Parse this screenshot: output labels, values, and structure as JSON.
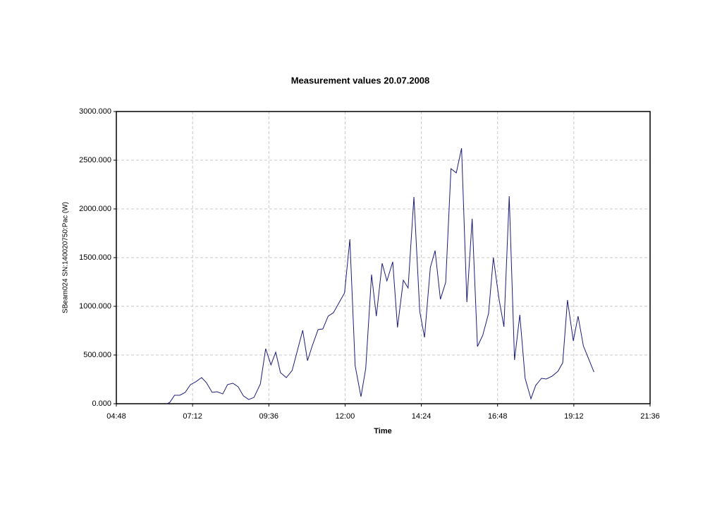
{
  "chart_data": {
    "type": "line",
    "title": "Measurement values 20.07.2008",
    "x_label": "Time",
    "y_label": "SBeam024 SN:140020750:Pac (W)",
    "grid": true,
    "xlim": [
      288,
      1296
    ],
    "xticks": [
      {
        "value": 288,
        "label": "04:48"
      },
      {
        "value": 432,
        "label": "07:12"
      },
      {
        "value": 576,
        "label": "09:36"
      },
      {
        "value": 720,
        "label": "12:00"
      },
      {
        "value": 864,
        "label": "14:24"
      },
      {
        "value": 1008,
        "label": "16:48"
      },
      {
        "value": 1152,
        "label": "19:12"
      },
      {
        "value": 1296,
        "label": "21:36"
      }
    ],
    "ylim": [
      0,
      3000
    ],
    "yticks": [
      {
        "value": 0,
        "label": "0.000"
      },
      {
        "value": 500,
        "label": "500.000"
      },
      {
        "value": 1000,
        "label": "1000.000"
      },
      {
        "value": 1500,
        "label": "1500.000"
      },
      {
        "value": 2000,
        "label": "2000.000"
      },
      {
        "value": 2500,
        "label": "2500.000"
      },
      {
        "value": 3000,
        "label": "3000.000"
      }
    ],
    "series": [
      {
        "color": "#1c1c78",
        "x": [
          384,
          389,
          398,
          408,
          418,
          428,
          438,
          449,
          458,
          469,
          478,
          489,
          498,
          508,
          518,
          528,
          538,
          548,
          560,
          570,
          580,
          589,
          598,
          609,
          620,
          640,
          649,
          658,
          669,
          678,
          688,
          698,
          719,
          729,
          739,
          750,
          759,
          770,
          779,
          790,
          799,
          810,
          819,
          830,
          839,
          850,
          861,
          870,
          881,
          890,
          900,
          910,
          920,
          930,
          940,
          950,
          960,
          970,
          980,
          991,
          1000,
          1011,
          1020,
          1030,
          1040,
          1050,
          1060,
          1071,
          1080,
          1091,
          1100,
          1111,
          1122,
          1131,
          1140,
          1151,
          1160,
          1170,
          1190
        ],
        "values": [
          0,
          14,
          87,
          87,
          116,
          196,
          225,
          268,
          217,
          116,
          123,
          101,
          196,
          210,
          174,
          80,
          43,
          65,
          203,
          565,
          399,
          529,
          319,
          268,
          341,
          754,
          442,
          594,
          761,
          768,
          899,
          935,
          1138,
          1688,
          391,
          72,
          362,
          1326,
          899,
          1442,
          1261,
          1457,
          783,
          1268,
          1188,
          2123,
          949,
          681,
          1399,
          1572,
          1072,
          1246,
          2413,
          2370,
          2623,
          1043,
          1899,
          587,
          703,
          928,
          1500,
          1065,
          790,
          2130,
          449,
          913,
          261,
          51,
          188,
          261,
          254,
          283,
          333,
          420,
          1065,
          645,
          899,
          594,
          326
        ]
      }
    ]
  }
}
